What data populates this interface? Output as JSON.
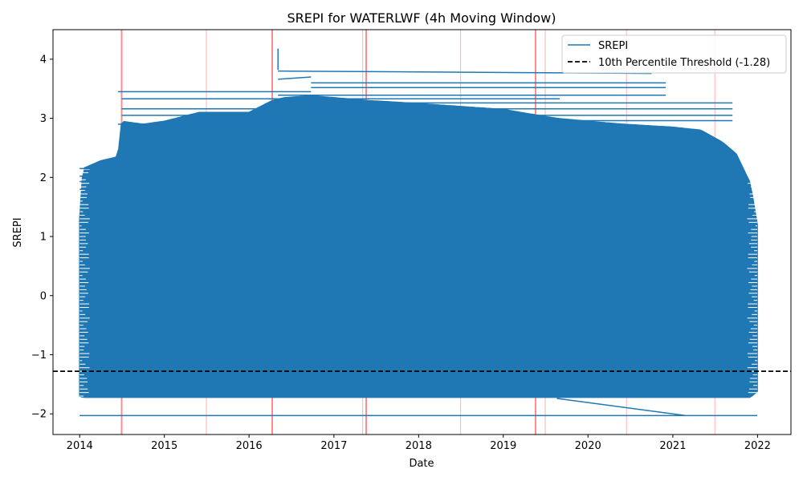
{
  "chart_data": {
    "type": "line",
    "title": "SREPI for WATERLWF (4h Moving Window)",
    "xlabel": "Date",
    "ylabel": "SREPI",
    "xlim": [
      "2013-09-08",
      "2022-05-25"
    ],
    "ylim": [
      -2.35,
      4.5
    ],
    "x_ticks": [
      "2014",
      "2015",
      "2016",
      "2017",
      "2018",
      "2019",
      "2020",
      "2021",
      "2022"
    ],
    "y_ticks": [
      -2,
      -1,
      0,
      1,
      2,
      3,
      4
    ],
    "grid": false,
    "legend_position": "upper right",
    "series": [
      {
        "name": "SREPI",
        "color": "#1f77b4",
        "style": "solid",
        "envelope": {
          "x": [
            "2014-01-01",
            "2014-01-15",
            "2014-04-01",
            "2014-06-15",
            "2014-07-01",
            "2014-10-01",
            "2015-01-01",
            "2015-06-01",
            "2016-01-01",
            "2016-04-10",
            "2016-06-01",
            "2016-09-24",
            "2017-01-01",
            "2017-06-01",
            "2018-01-01",
            "2018-07-01",
            "2019-01-01",
            "2019-06-01",
            "2019-08-20",
            "2020-01-01",
            "2020-06-01",
            "2021-01-01",
            "2021-05-01",
            "2021-08-01",
            "2021-10-01",
            "2021-12-01",
            "2021-12-31"
          ],
          "high": [
            1.3,
            2.15,
            2.28,
            2.35,
            2.95,
            2.9,
            2.95,
            3.1,
            3.1,
            3.3,
            3.35,
            3.38,
            3.35,
            3.3,
            3.25,
            3.2,
            3.15,
            3.05,
            3.0,
            2.95,
            2.9,
            2.85,
            2.8,
            2.6,
            2.4,
            1.9,
            1.2
          ],
          "low": [
            -1.7,
            -1.72,
            -1.72,
            -1.72,
            -1.72,
            -1.72,
            -1.72,
            -1.72,
            -1.72,
            -1.72,
            -1.72,
            -1.72,
            -1.72,
            -1.72,
            -1.72,
            -1.72,
            -1.72,
            -1.72,
            -1.72,
            -1.72,
            -1.72,
            -1.72,
            -1.72,
            -1.72,
            -1.72,
            -1.72,
            -1.62
          ]
        },
        "segments": [
          {
            "x": [
              "2016-05-05",
              "2016-05-05"
            ],
            "y": [
              4.18,
              3.82
            ]
          },
          {
            "x": [
              "2016-05-05",
              "2020-10-01"
            ],
            "y": [
              3.8,
              3.76
            ]
          },
          {
            "x": [
              "2016-05-05",
              "2016-09-24"
            ],
            "y": [
              3.66,
              3.7
            ]
          },
          {
            "x": [
              "2016-09-24",
              "2020-12-01"
            ],
            "y": [
              3.6,
              3.6
            ]
          },
          {
            "x": [
              "2016-09-24",
              "2020-12-01"
            ],
            "y": [
              3.52,
              3.52
            ]
          },
          {
            "x": [
              "2014-06-15",
              "2016-09-24"
            ],
            "y": [
              3.45,
              3.45
            ]
          },
          {
            "x": [
              "2016-05-05",
              "2020-12-01"
            ],
            "y": [
              3.39,
              3.39
            ]
          },
          {
            "x": [
              "2014-07-01",
              "2019-09-01"
            ],
            "y": [
              3.33,
              3.33
            ]
          },
          {
            "x": [
              "2016-09-24",
              "2021-09-15"
            ],
            "y": [
              3.26,
              3.26
            ]
          },
          {
            "x": [
              "2014-07-01",
              "2021-09-15"
            ],
            "y": [
              3.16,
              3.16
            ]
          },
          {
            "x": [
              "2014-07-01",
              "2021-09-15"
            ],
            "y": [
              3.05,
              3.05
            ]
          },
          {
            "x": [
              "2019-06-15",
              "2021-09-15"
            ],
            "y": [
              2.96,
              2.96
            ]
          },
          {
            "x": [
              "2014-06-15",
              "2016-06-01"
            ],
            "y": [
              2.9,
              2.9
            ]
          },
          {
            "x": [
              "2014-10-01",
              "2015-06-15"
            ],
            "y": [
              2.75,
              2.75
            ]
          },
          {
            "x": [
              "2014-06-15",
              "2015-06-15"
            ],
            "y": [
              2.42,
              2.42
            ]
          },
          {
            "x": [
              "2014-01-01",
              "2014-10-01"
            ],
            "y": [
              2.15,
              2.15
            ]
          },
          {
            "x": [
              "2014-01-01",
              "2014-06-15"
            ],
            "y": [
              2.02,
              2.02
            ]
          },
          {
            "x": [
              "2014-01-01",
              "2014-06-01"
            ],
            "y": [
              1.93,
              1.93
            ]
          },
          {
            "x": [
              "2014-01-01",
              "2014-04-01"
            ],
            "y": [
              1.8,
              1.8
            ]
          },
          {
            "x": [
              "2019-08-20",
              "2021-02-25"
            ],
            "y": [
              -1.74,
              -2.03
            ]
          },
          {
            "x": [
              "2014-01-01",
              "2021-12-31"
            ],
            "y": [
              -2.03,
              -2.03
            ]
          }
        ]
      },
      {
        "name": "10th Percentile Threshold (-1.28)",
        "color": "#000000",
        "style": "dashed",
        "y_constant": -1.28
      }
    ],
    "vertical_lines": {
      "color": "#ff0000",
      "dates": [
        "2014-07-01",
        "2015-07-01",
        "2016-04-10",
        "2017-05-05",
        "2017-05-20",
        "2018-07-01",
        "2019-05-20",
        "2019-07-01",
        "2020-06-15",
        "2021-07-01"
      ],
      "strong": [
        true,
        false,
        true,
        false,
        true,
        false,
        true,
        false,
        false,
        false
      ]
    }
  }
}
